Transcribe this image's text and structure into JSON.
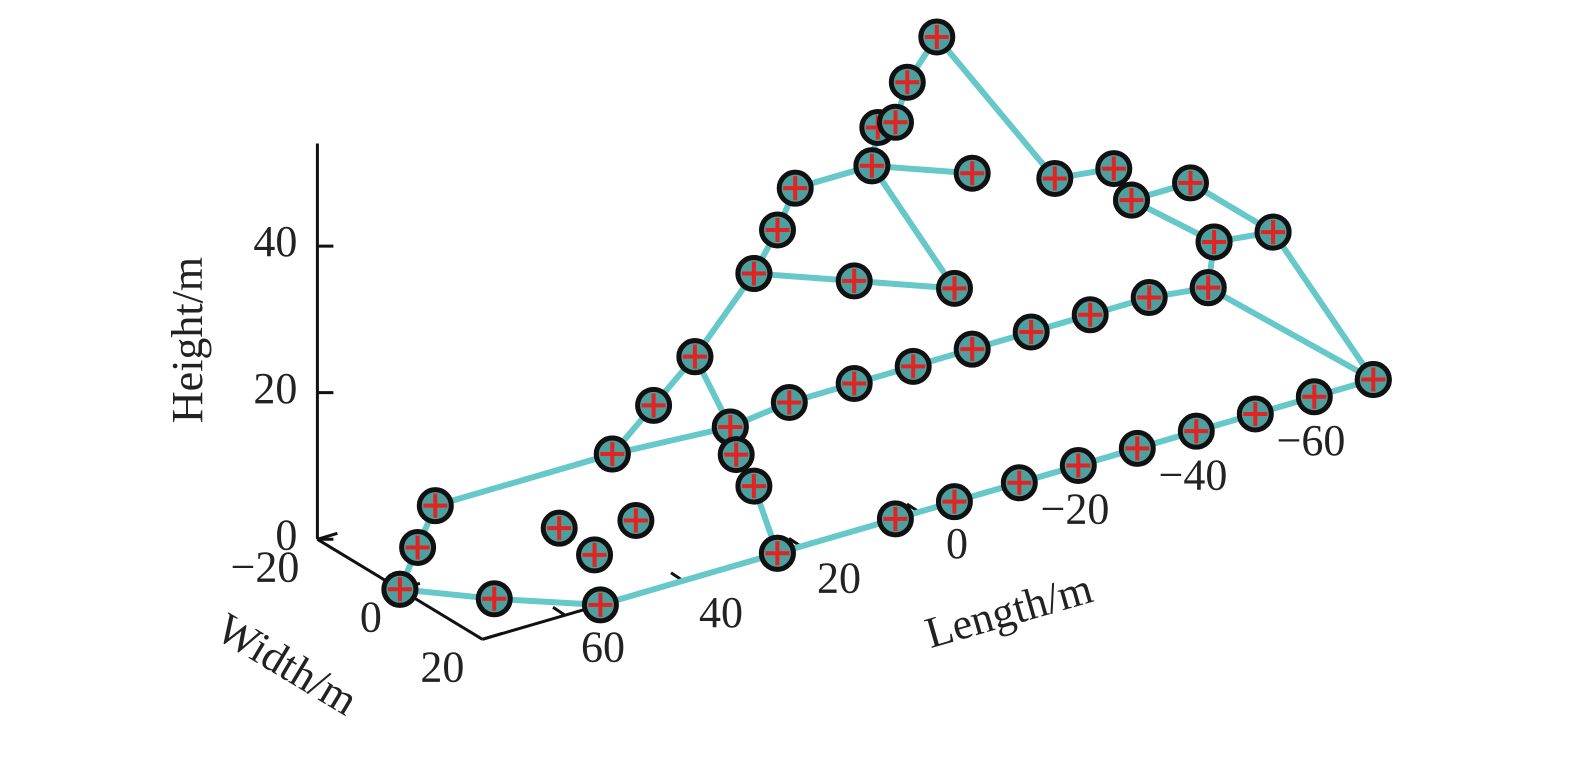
{
  "chart_data": {
    "type": "scatter3d",
    "x_label": "Length/m",
    "y_label": "Width/m",
    "z_label": "Height/m",
    "xlim": [
      74,
      -78
    ],
    "ylim": [
      -20,
      20
    ],
    "zlim": [
      0,
      54
    ],
    "xticks": [
      {
        "value": 60,
        "label": "60"
      },
      {
        "value": 40,
        "label": "40"
      },
      {
        "value": 20,
        "label": "20"
      },
      {
        "value": 0,
        "label": "0"
      },
      {
        "value": -20,
        "label": "−20"
      },
      {
        "value": -40,
        "label": "−40"
      },
      {
        "value": -60,
        "label": "−60"
      }
    ],
    "yticks": [
      {
        "value": -20,
        "label": "−20"
      },
      {
        "value": 0,
        "label": "0"
      },
      {
        "value": 20,
        "label": "20"
      }
    ],
    "zticks": [
      0,
      20,
      40
    ],
    "line_color": "#66c8c8",
    "marker_color": "#4f9f9f",
    "marker_edge": "#111111",
    "marker_cross": "#e02424",
    "series": [
      {
        "line": true,
        "x": [
          74,
          71,
          68,
          38,
          18,
          8,
          -3,
          -13,
          -23,
          -33,
          -43,
          -53,
          -63,
          -64,
          -74,
          -77
        ],
        "y": [
          0,
          0,
          0,
          0,
          0,
          0,
          0,
          0,
          0,
          0,
          0,
          0,
          0,
          0,
          0,
          20
        ],
        "z": [
          0,
          5,
          10,
          10,
          9,
          10,
          10,
          10,
          10,
          10,
          10,
          10,
          9,
          15,
          14,
          0
        ]
      },
      {
        "line": true,
        "x": [
          74,
          65,
          54,
          24,
          4,
          -6,
          -17,
          -27,
          -37,
          -47,
          -57,
          -67,
          -77,
          -63
        ],
        "y": [
          0,
          10,
          20,
          20,
          20,
          20,
          20,
          20,
          20,
          20,
          20,
          20,
          20,
          0
        ],
        "z": [
          0,
          0,
          0,
          0,
          0,
          0,
          0,
          0,
          0,
          0,
          0,
          0,
          0,
          9
        ]
      },
      {
        "line": true,
        "x": [
          38,
          31,
          24,
          14,
          10,
          7,
          -6,
          -7,
          -10,
          -12,
          -17,
          -37,
          -47,
          -50,
          -64
        ],
        "y": [
          0,
          0,
          0,
          0,
          0,
          0,
          0,
          0,
          0,
          0,
          0,
          0,
          0,
          0,
          0
        ],
        "z": [
          10,
          15,
          20,
          29,
          34,
          39,
          39,
          44,
          44,
          49,
          54,
          30,
          29,
          24,
          15
        ]
      },
      {
        "line": true,
        "x": [
          24,
          18,
          17,
          14,
          24
        ],
        "y": [
          0,
          0,
          0,
          0,
          20
        ],
        "z": [
          20,
          9,
          5,
          0,
          0
        ]
      },
      {
        "line": true,
        "x": [
          14,
          -3,
          -20,
          -6,
          -23
        ],
        "y": [
          0,
          0,
          0,
          0,
          0
        ],
        "z": [
          29,
          24,
          19,
          39,
          34
        ]
      },
      {
        "line": true,
        "x": [
          -50,
          -60,
          -74
        ],
        "y": [
          0,
          0,
          0
        ],
        "z": [
          24,
          24,
          14
        ]
      },
      {
        "line": false,
        "x": [
          47,
          48,
          34
        ],
        "y": [
          0,
          10,
          0
        ],
        "z": [
          2,
          2,
          0
        ]
      }
    ]
  }
}
